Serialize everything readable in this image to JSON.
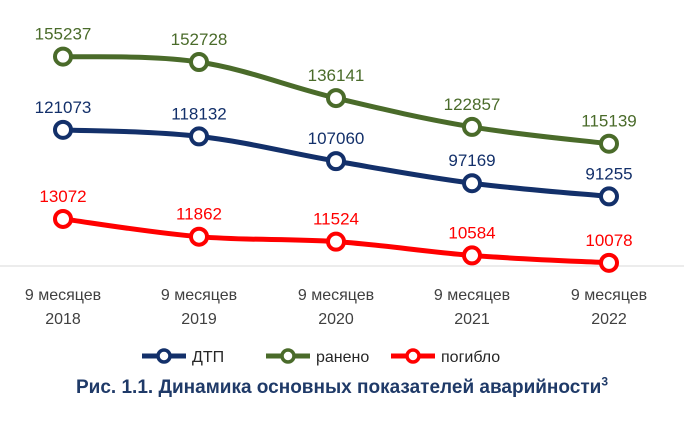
{
  "chart_data": {
    "type": "line",
    "categories": [
      [
        "9 месяцев",
        "2018"
      ],
      [
        "9 месяцев",
        "2019"
      ],
      [
        "9 месяцев",
        "2020"
      ],
      [
        "9 месяцев",
        "2021"
      ],
      [
        "9 месяцев",
        "2022"
      ]
    ],
    "series": [
      {
        "name": "ДТП",
        "values": [
          121073,
          118132,
          107060,
          97169,
          91255
        ],
        "color": "#13306a"
      },
      {
        "name": "ранено",
        "values": [
          155237,
          152728,
          136141,
          122857,
          115139
        ],
        "color": "#4a6b2a"
      },
      {
        "name": "погибло",
        "values": [
          13072,
          11862,
          11524,
          10584,
          10078
        ],
        "color": "#ff0000"
      }
    ],
    "legend_position": "bottom",
    "grid": false,
    "title": "Рис. 1.1. Динамика основных показателей аварийности",
    "title_footnote": "3"
  }
}
